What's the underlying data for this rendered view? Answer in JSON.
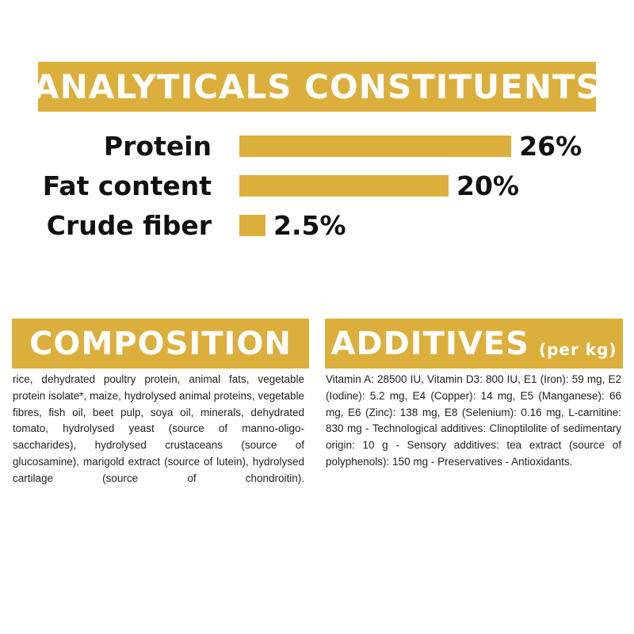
{
  "chart_data": {
    "type": "bar",
    "title": "ANALYTICALS CONSTITUENTS",
    "categories": [
      "Protein",
      "Fat content",
      "Crude fiber"
    ],
    "values": [
      26,
      20,
      2.5
    ],
    "value_labels": [
      "26%",
      "20%",
      "2.5%"
    ],
    "color": "#dcaf3c"
  },
  "composition": {
    "title": "COMPOSITION",
    "text": "rice, dehydrated poultry protein, animal fats, vegetable protein isolate*, maize, hydrolysed animal proteins, vegetable fibres, fish oil, beet pulp, soya oil, minerals, dehydrated tomato, hydrolysed yeast (source of manno-oligo-saccharides), hydrolysed crustaceans (source of glucosamine), marigold extract (source of lutein), hydrolysed cartilage (source of chondroitin)."
  },
  "additives": {
    "title": "ADDITIVES",
    "subtitle": "(per kg)",
    "text": "Vitamin A: 28500 IU, Vitamin D3: 800 IU, E1 (Iron): 59 mg, E2 (Iodine): 5.2 mg, E4 (Copper): 14 mg, E5 (Manganese): 66 mg, E6 (Zinc): 138 mg, E8 (Selenium): 0.16 mg, L-carnitine: 830 mg - Technological additives: Clinoptilolite of sedimentary origin: 10 g - Sensory additives: tea extract (source of polyphenols): 150 mg - Preservatives - Antioxidants."
  }
}
